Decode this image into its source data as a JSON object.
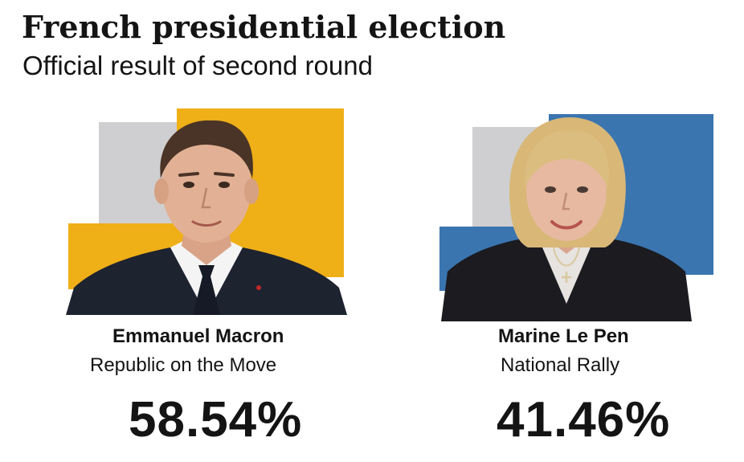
{
  "header": {
    "title": "French presidential election",
    "subtitle": "Official result of second round"
  },
  "candidates": [
    {
      "name": "Emmanuel Macron",
      "party": "Republic on the Move",
      "percent": "58.54%",
      "vote_share": 58.54,
      "accent_color": "#efaf17",
      "backdrop_color": "#cfcfd1"
    },
    {
      "name": "Marine Le Pen",
      "party": "National Rally",
      "percent": "41.46%",
      "vote_share": 41.46,
      "accent_color": "#3a75b0",
      "backdrop_color": "#cfcfd1"
    }
  ]
}
